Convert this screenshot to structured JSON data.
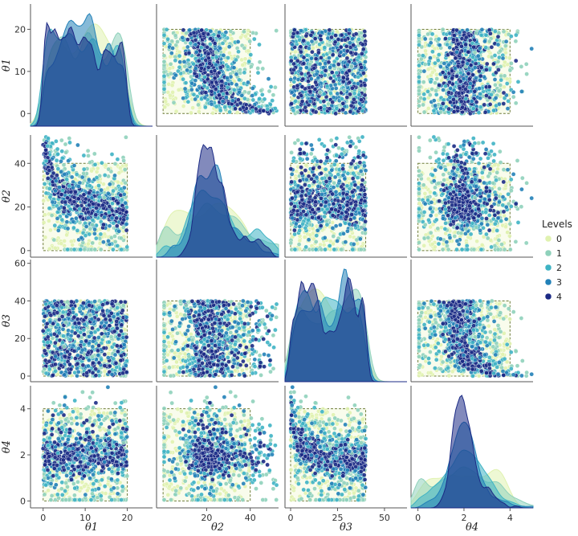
{
  "chart_data": {
    "type": "scatter",
    "subtype": "pairplot",
    "variables": [
      {
        "name": "θ1",
        "label": "θ1",
        "range": [
          -3,
          26
        ],
        "ticks": [
          0,
          10,
          20
        ],
        "box": [
          0,
          20
        ]
      },
      {
        "name": "θ2",
        "label": "θ2",
        "range": [
          -3,
          53
        ],
        "ticks": [
          0,
          20,
          40
        ],
        "box": [
          0,
          40
        ]
      },
      {
        "name": "θ3",
        "label": "θ3",
        "range": [
          -3,
          62
        ],
        "ticks": [
          0,
          20,
          40,
          60
        ],
        "box": [
          0,
          40
        ]
      },
      {
        "name": "θ4",
        "label": "θ4",
        "range": [
          -0.3,
          5.0
        ],
        "ticks": [
          0,
          2,
          4
        ],
        "box": [
          0,
          4
        ]
      }
    ],
    "x_tick_labels": [
      [
        "0",
        "10",
        "20"
      ],
      [
        "20",
        "40"
      ],
      [
        "0",
        "25",
        "50"
      ],
      [
        "0",
        "2",
        "4"
      ]
    ],
    "y_tick_labels": [
      [
        "0",
        "10",
        "20"
      ],
      [
        "0",
        "20",
        "40"
      ],
      [
        "0",
        "20",
        "40",
        "60"
      ],
      [
        "0",
        "2",
        "4"
      ]
    ],
    "legend": {
      "title": "Levels",
      "entries": [
        {
          "label": "0",
          "color": "#e0f2b0"
        },
        {
          "label": "1",
          "color": "#8fd1bb"
        },
        {
          "label": "2",
          "color": "#3eb3c4"
        },
        {
          "label": "3",
          "color": "#2281b8"
        },
        {
          "label": "4",
          "color": "#1b2a85"
        }
      ],
      "placement": "right"
    },
    "series": [
      {
        "name": "0",
        "color": "#e0f2b0",
        "spread": 1.0
      },
      {
        "name": "1",
        "color": "#8fd1bb",
        "spread": 0.8
      },
      {
        "name": "2",
        "color": "#3eb3c4",
        "spread": 0.55
      },
      {
        "name": "3",
        "color": "#2281b8",
        "spread": 0.35
      },
      {
        "name": "4",
        "color": "#1b2a85",
        "spread": 0.2
      }
    ],
    "diagonal_density_peaks": [
      {
        "variable": "θ1",
        "shape": "multimodal",
        "peak_x": [
          5,
          10,
          13,
          17
        ]
      },
      {
        "variable": "θ2",
        "shape": "spike",
        "peak_x": [
          15
        ]
      },
      {
        "variable": "θ3",
        "shape": "multimodal",
        "peak_x": [
          5,
          15,
          26
        ]
      },
      {
        "variable": "θ4",
        "shape": "spike",
        "peak_x": [
          1.55,
          2.3,
          2.6
        ]
      }
    ],
    "grid": false
  }
}
